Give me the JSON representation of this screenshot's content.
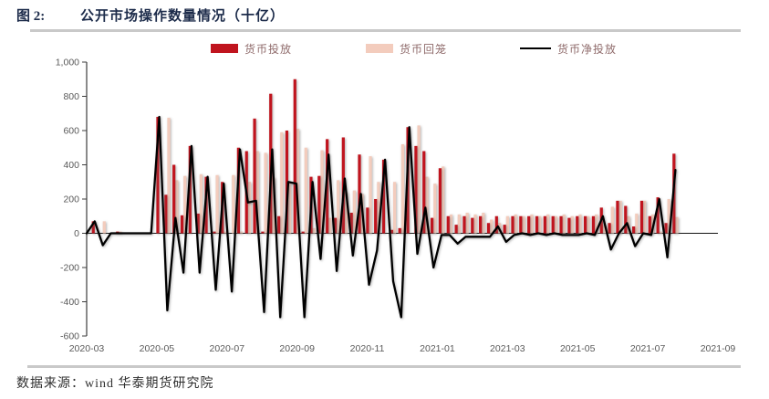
{
  "header": {
    "figure_label": "图 2:",
    "title": "公开市场操作数量情况（十亿）"
  },
  "footer": {
    "source": "数据来源：wind 华泰期货研究院"
  },
  "legend": {
    "position": "top",
    "items": [
      {
        "label": "货币投放",
        "type": "bar",
        "color": "#c0141e"
      },
      {
        "label": "货币回笼",
        "type": "bar",
        "color": "#f3ccbd"
      },
      {
        "label": "货币净投放",
        "type": "line",
        "color": "#000000"
      }
    ]
  },
  "chart_data": {
    "type": "combo",
    "title": "公开市场操作数量情况（十亿）",
    "unit": "十亿",
    "grid": false,
    "legend_position": "top",
    "ylim": [
      -600,
      1000
    ],
    "y_ticks": [
      -600,
      -400,
      -200,
      0,
      200,
      400,
      600,
      800,
      1000
    ],
    "x_tick_labels": [
      "2020-03",
      "2020-05",
      "2020-07",
      "2020-09",
      "2020-11",
      "2021-01",
      "2021-03",
      "2021-05",
      "2021-07",
      "2021-09"
    ],
    "x_range": [
      "2020-03",
      "2021-09"
    ],
    "x": [
      "2020-03-01",
      "2020-03-08",
      "2020-03-15",
      "2020-03-22",
      "2020-03-29",
      "2020-04-05",
      "2020-04-12",
      "2020-04-19",
      "2020-04-26",
      "2020-05-03",
      "2020-05-10",
      "2020-05-17",
      "2020-05-24",
      "2020-05-31",
      "2020-06-07",
      "2020-06-14",
      "2020-06-21",
      "2020-06-28",
      "2020-07-05",
      "2020-07-12",
      "2020-07-19",
      "2020-07-26",
      "2020-08-02",
      "2020-08-09",
      "2020-08-16",
      "2020-08-23",
      "2020-08-30",
      "2020-09-06",
      "2020-09-13",
      "2020-09-20",
      "2020-09-27",
      "2020-10-04",
      "2020-10-11",
      "2020-10-18",
      "2020-10-25",
      "2020-11-01",
      "2020-11-08",
      "2020-11-15",
      "2020-11-22",
      "2020-11-29",
      "2020-12-06",
      "2020-12-13",
      "2020-12-20",
      "2020-12-27",
      "2021-01-03",
      "2021-01-10",
      "2021-01-17",
      "2021-01-24",
      "2021-01-31",
      "2021-02-07",
      "2021-02-14",
      "2021-02-21",
      "2021-02-28",
      "2021-03-07",
      "2021-03-14",
      "2021-03-21",
      "2021-03-28",
      "2021-04-04",
      "2021-04-11",
      "2021-04-18",
      "2021-04-25",
      "2021-05-02",
      "2021-05-09",
      "2021-05-16",
      "2021-05-23",
      "2021-05-30",
      "2021-06-06",
      "2021-06-13",
      "2021-06-20",
      "2021-06-27",
      "2021-07-04",
      "2021-07-11",
      "2021-07-18",
      "2021-07-25"
    ],
    "series": [
      {
        "name": "货币投放",
        "type": "bar",
        "color": "#c0141e",
        "values": [
          0,
          70,
          0,
          0,
          10,
          0,
          0,
          0,
          0,
          680,
          225,
          400,
          105,
          510,
          115,
          330,
          10,
          300,
          0,
          500,
          480,
          670,
          10,
          815,
          100,
          600,
          900,
          10,
          330,
          335,
          550,
          90,
          560,
          120,
          460,
          150,
          200,
          430,
          20,
          30,
          620,
          510,
          480,
          90,
          380,
          100,
          50,
          100,
          90,
          100,
          60,
          100,
          50,
          100,
          100,
          100,
          100,
          100,
          100,
          100,
          90,
          100,
          100,
          100,
          150,
          60,
          190,
          160,
          40,
          190,
          100,
          210,
          60,
          465
        ]
      },
      {
        "name": "货币回笼",
        "type": "bar",
        "color": "#f3ccbd",
        "values": [
          0,
          0,
          70,
          0,
          10,
          0,
          0,
          0,
          0,
          0,
          675,
          310,
          335,
          0,
          345,
          0,
          340,
          10,
          340,
          10,
          300,
          480,
          470,
          325,
          590,
          300,
          610,
          500,
          30,
          485,
          90,
          310,
          240,
          250,
          230,
          450,
          300,
          0,
          300,
          520,
          0,
          630,
          330,
          290,
          390,
          110,
          110,
          120,
          110,
          120,
          80,
          60,
          100,
          110,
          100,
          110,
          100,
          110,
          100,
          110,
          100,
          110,
          100,
          110,
          50,
          155,
          190,
          100,
          115,
          190,
          110,
          10,
          200,
          95
        ]
      },
      {
        "name": "货币净投放",
        "type": "line",
        "color": "#000000",
        "values": [
          0,
          70,
          -70,
          0,
          0,
          0,
          0,
          0,
          0,
          680,
          -450,
          90,
          -230,
          510,
          -230,
          330,
          -330,
          290,
          -340,
          490,
          180,
          190,
          -460,
          490,
          -490,
          300,
          290,
          -490,
          300,
          -150,
          460,
          -220,
          320,
          -130,
          230,
          -300,
          -100,
          430,
          -280,
          -490,
          620,
          -120,
          150,
          -200,
          -10,
          -10,
          -60,
          -20,
          -20,
          -20,
          -20,
          40,
          -50,
          -10,
          0,
          -10,
          0,
          -10,
          0,
          -10,
          -10,
          -10,
          0,
          -10,
          100,
          -95,
          0,
          60,
          -75,
          0,
          -10,
          200,
          -140,
          370
        ]
      }
    ]
  },
  "colors": {
    "injection_bar": "#c0141e",
    "withdrawal_bar": "#f3ccbd",
    "net_line": "#000000",
    "axis_text": "#595959",
    "title_text": "#1c2b4a",
    "rule": "#c9c9c9"
  }
}
